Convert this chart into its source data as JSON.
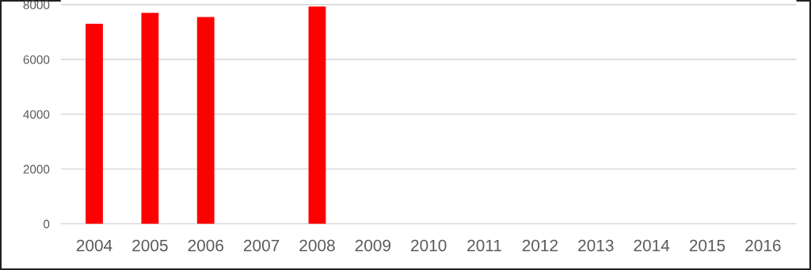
{
  "chart_data": {
    "type": "bar",
    "categories": [
      "2004",
      "2005",
      "2006",
      "2007",
      "2008",
      "2009",
      "2010",
      "2011",
      "2012",
      "2013",
      "2014",
      "2015",
      "2016"
    ],
    "values": [
      7300,
      7700,
      7550,
      null,
      7930,
      null,
      null,
      null,
      null,
      null,
      null,
      null,
      null
    ],
    "color": "#ff0000",
    "ylim": [
      0,
      8170
    ],
    "yticks": [
      0,
      2000,
      4000,
      6000,
      8000
    ],
    "grid": "y"
  }
}
